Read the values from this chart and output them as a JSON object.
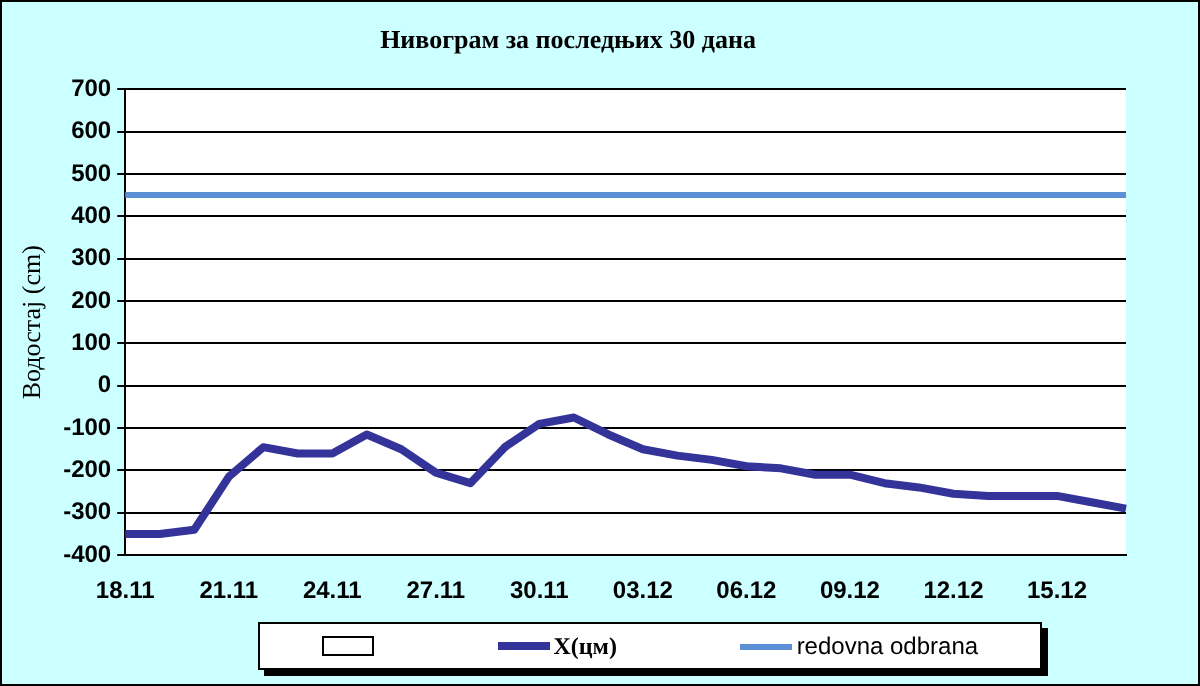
{
  "chart_data": {
    "type": "line",
    "title": "Нивограм за последњих 30 дана",
    "ylabel": "Водостај (cm)",
    "categories": [
      "18.11",
      null,
      null,
      "21.11",
      null,
      null,
      "24.11",
      null,
      null,
      "27.11",
      null,
      null,
      "30.11",
      null,
      null,
      "03.12",
      null,
      null,
      "06.12",
      null,
      null,
      "09.12",
      null,
      null,
      "12.12",
      null,
      null,
      "15.12",
      null,
      null
    ],
    "series": [
      {
        "name": "X(цм)",
        "color": "#333399",
        "values": [
          -350,
          -350,
          -340,
          -215,
          -145,
          -160,
          -160,
          -115,
          -150,
          -205,
          -230,
          -145,
          -90,
          -75,
          -115,
          -150,
          -165,
          -175,
          -190,
          -195,
          -210,
          -210,
          -230,
          -240,
          -255,
          -260,
          -260,
          -260,
          -275,
          -290
        ]
      }
    ],
    "ref_lines": [
      {
        "axis": "y",
        "value": 450,
        "label": "redovna odbrana",
        "color": "#5b8fd6"
      }
    ],
    "ylim": [
      -400,
      700
    ],
    "yticks": [
      -400,
      -300,
      -200,
      -100,
      0,
      100,
      200,
      300,
      400,
      500,
      600,
      700
    ],
    "grid": "y",
    "legend": "bottom",
    "marker": "none",
    "line_style": "solid"
  }
}
